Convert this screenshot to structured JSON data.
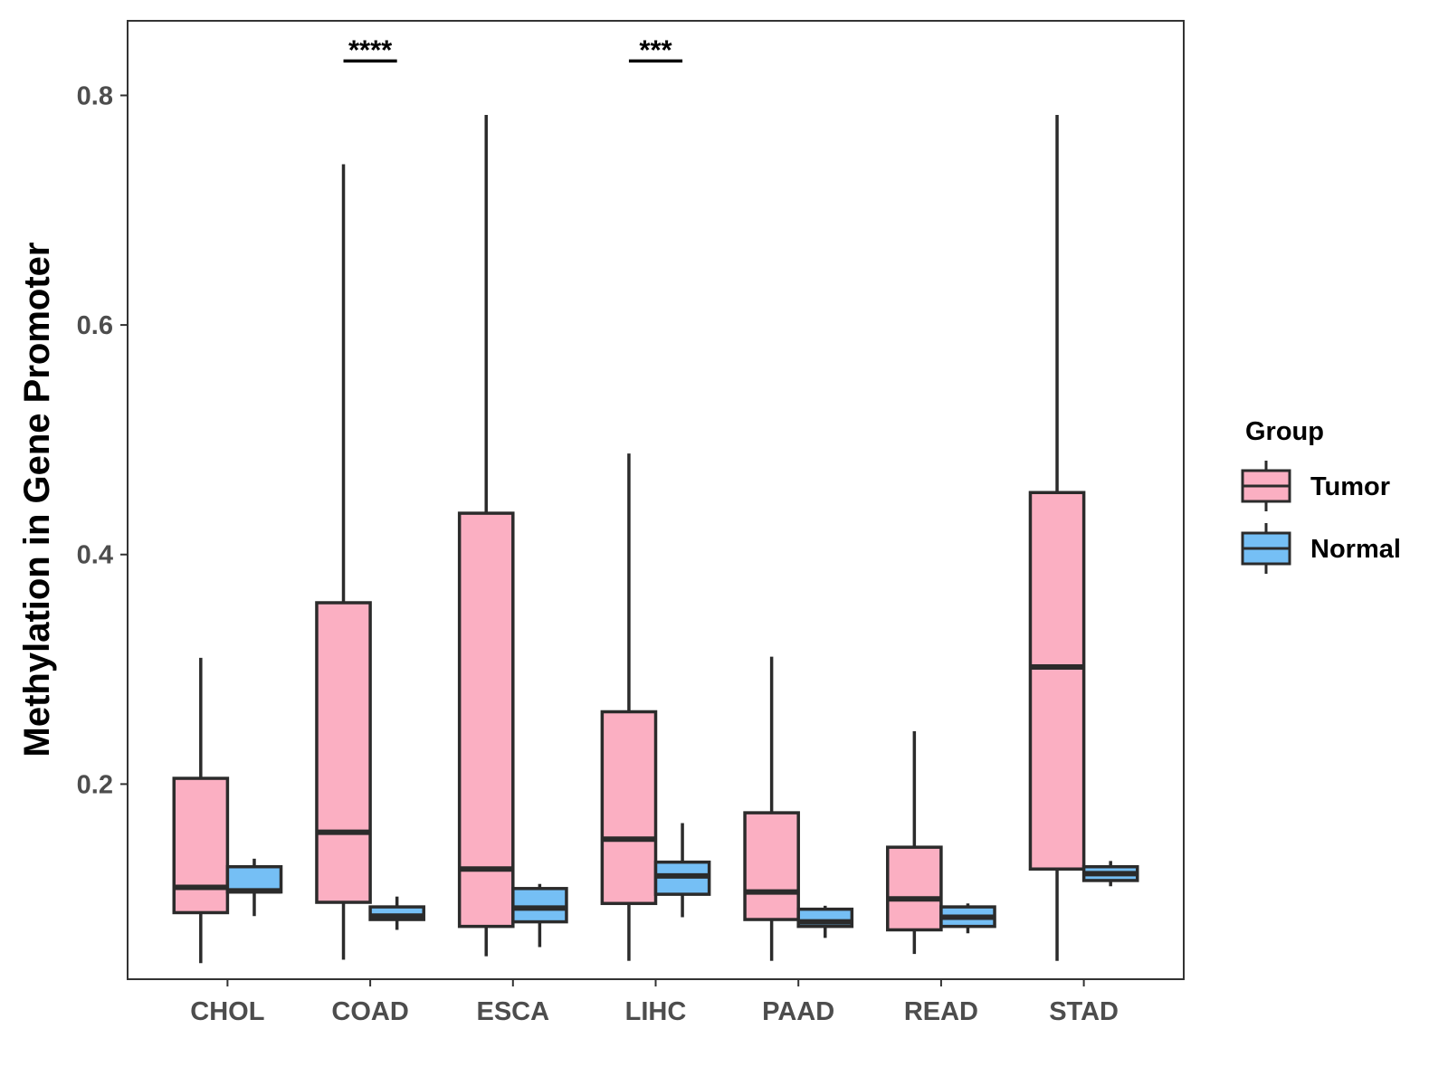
{
  "chart_data": {
    "type": "boxplot",
    "title": "",
    "xlabel": "",
    "ylabel": "Methylation in Gene Promoter",
    "ylim": [
      0.03,
      0.865
    ],
    "yticks": [
      0.2,
      0.4,
      0.6,
      0.8
    ],
    "ytick_labels": [
      "0.2",
      "0.4",
      "0.6",
      "0.8"
    ],
    "grid": false,
    "categories": [
      "CHOL",
      "COAD",
      "ESCA",
      "LIHC",
      "PAAD",
      "READ",
      "STAD"
    ],
    "legend": {
      "title": "Group",
      "position": "right",
      "entries": [
        {
          "name": "Tumor",
          "color": "#FBAFC2"
        },
        {
          "name": "Normal",
          "color": "#75BFF5"
        }
      ]
    },
    "series": [
      {
        "name": "Tumor",
        "color": "#FBAFC2",
        "boxes": [
          {
            "category": "CHOL",
            "min": 0.044,
            "q1": 0.088,
            "median": 0.11,
            "q3": 0.205,
            "max": 0.31
          },
          {
            "category": "COAD",
            "min": 0.047,
            "q1": 0.097,
            "median": 0.158,
            "q3": 0.358,
            "max": 0.74
          },
          {
            "category": "ESCA",
            "min": 0.05,
            "q1": 0.076,
            "median": 0.126,
            "q3": 0.436,
            "max": 0.783
          },
          {
            "category": "LIHC",
            "min": 0.046,
            "q1": 0.096,
            "median": 0.152,
            "q3": 0.263,
            "max": 0.488
          },
          {
            "category": "PAAD",
            "min": 0.046,
            "q1": 0.082,
            "median": 0.106,
            "q3": 0.175,
            "max": 0.311
          },
          {
            "category": "READ",
            "min": 0.052,
            "q1": 0.073,
            "median": 0.1,
            "q3": 0.145,
            "max": 0.246
          },
          {
            "category": "STAD",
            "min": 0.046,
            "q1": 0.126,
            "median": 0.302,
            "q3": 0.454,
            "max": 0.783
          }
        ]
      },
      {
        "name": "Normal",
        "color": "#75BFF5",
        "boxes": [
          {
            "category": "CHOL",
            "min": 0.085,
            "q1": 0.106,
            "median": 0.107,
            "q3": 0.128,
            "max": 0.135
          },
          {
            "category": "COAD",
            "min": 0.073,
            "q1": 0.082,
            "median": 0.085,
            "q3": 0.093,
            "max": 0.102
          },
          {
            "category": "ESCA",
            "min": 0.058,
            "q1": 0.08,
            "median": 0.092,
            "q3": 0.109,
            "max": 0.113
          },
          {
            "category": "LIHC",
            "min": 0.084,
            "q1": 0.104,
            "median": 0.12,
            "q3": 0.132,
            "max": 0.166
          },
          {
            "category": "PAAD",
            "min": 0.066,
            "q1": 0.076,
            "median": 0.08,
            "q3": 0.091,
            "max": 0.094
          },
          {
            "category": "READ",
            "min": 0.07,
            "q1": 0.076,
            "median": 0.084,
            "q3": 0.093,
            "max": 0.096
          },
          {
            "category": "STAD",
            "min": 0.111,
            "q1": 0.116,
            "median": 0.122,
            "q3": 0.128,
            "max": 0.133
          }
        ]
      }
    ],
    "annotations": [
      {
        "category": "COAD",
        "label": "****",
        "y": 0.83
      },
      {
        "category": "LIHC",
        "label": "***",
        "y": 0.83
      }
    ]
  }
}
